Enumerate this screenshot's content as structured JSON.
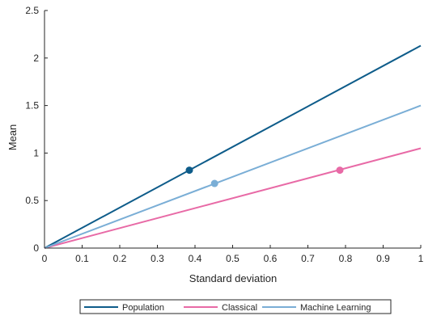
{
  "chart_data": {
    "type": "line",
    "title": "",
    "xlabel": "Standard deviation",
    "ylabel": "Mean",
    "xlim": [
      0,
      1
    ],
    "ylim": [
      0,
      2.5
    ],
    "xticks": [
      0,
      0.1,
      0.2,
      0.3,
      0.4,
      0.5,
      0.6,
      0.7,
      0.8,
      0.9,
      1
    ],
    "xtick_labels": [
      "0",
      "0.1",
      "0.2",
      "0.3",
      "0.4",
      "0.5",
      "0.6",
      "0.7",
      "0.8",
      "0.9",
      "1"
    ],
    "yticks": [
      0,
      0.5,
      1,
      1.5,
      2,
      2.5
    ],
    "ytick_labels": [
      "0",
      "0.5",
      "1",
      "1.5",
      "2",
      "2.5"
    ],
    "grid": false,
    "legend_placement": "bottom",
    "series": [
      {
        "name": "Population",
        "color": "#0e5c8a",
        "x": [
          0,
          1
        ],
        "y": [
          0,
          2.13
        ],
        "marker": {
          "x": 0.385,
          "y": 0.82
        }
      },
      {
        "name": "Classical",
        "color": "#e86aa6",
        "x": [
          0,
          1
        ],
        "y": [
          0,
          1.05
        ],
        "marker": {
          "x": 0.785,
          "y": 0.82
        }
      },
      {
        "name": "Machine Learning",
        "color": "#7aaed6",
        "x": [
          0,
          1
        ],
        "y": [
          0,
          1.5
        ],
        "marker": {
          "x": 0.452,
          "y": 0.68
        }
      }
    ]
  }
}
